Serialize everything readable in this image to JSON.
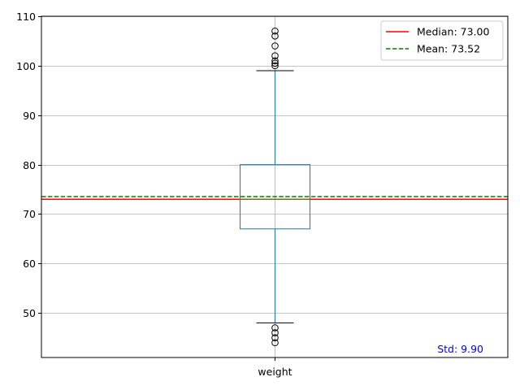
{
  "chart_data": {
    "type": "box",
    "categories": [
      "weight"
    ],
    "ylim": [
      41,
      110
    ],
    "yticks": [
      50,
      60,
      70,
      80,
      90,
      100,
      110
    ],
    "grid": true,
    "box": {
      "q1": 67,
      "median": 73,
      "q3": 80,
      "whisker_low": 48,
      "whisker_high": 99,
      "outliers_high": [
        100,
        100.5,
        101,
        102,
        104,
        106,
        107
      ],
      "outliers_low": [
        44,
        45,
        46,
        47
      ]
    },
    "reference_lines": [
      {
        "name": "Median: 73.00",
        "value": 73.0,
        "color": "#ff0000",
        "style": "solid"
      },
      {
        "name": "Mean: 73.52",
        "value": 73.52,
        "color": "#008000",
        "style": "dashed"
      }
    ],
    "legend_position": "top-right",
    "annotation": {
      "text": "Std: 9.90",
      "color": "#0000ff"
    },
    "colors": {
      "box": "#1f77b4",
      "whisker_cap": "#000000",
      "grid": "#b0b0b0"
    }
  }
}
